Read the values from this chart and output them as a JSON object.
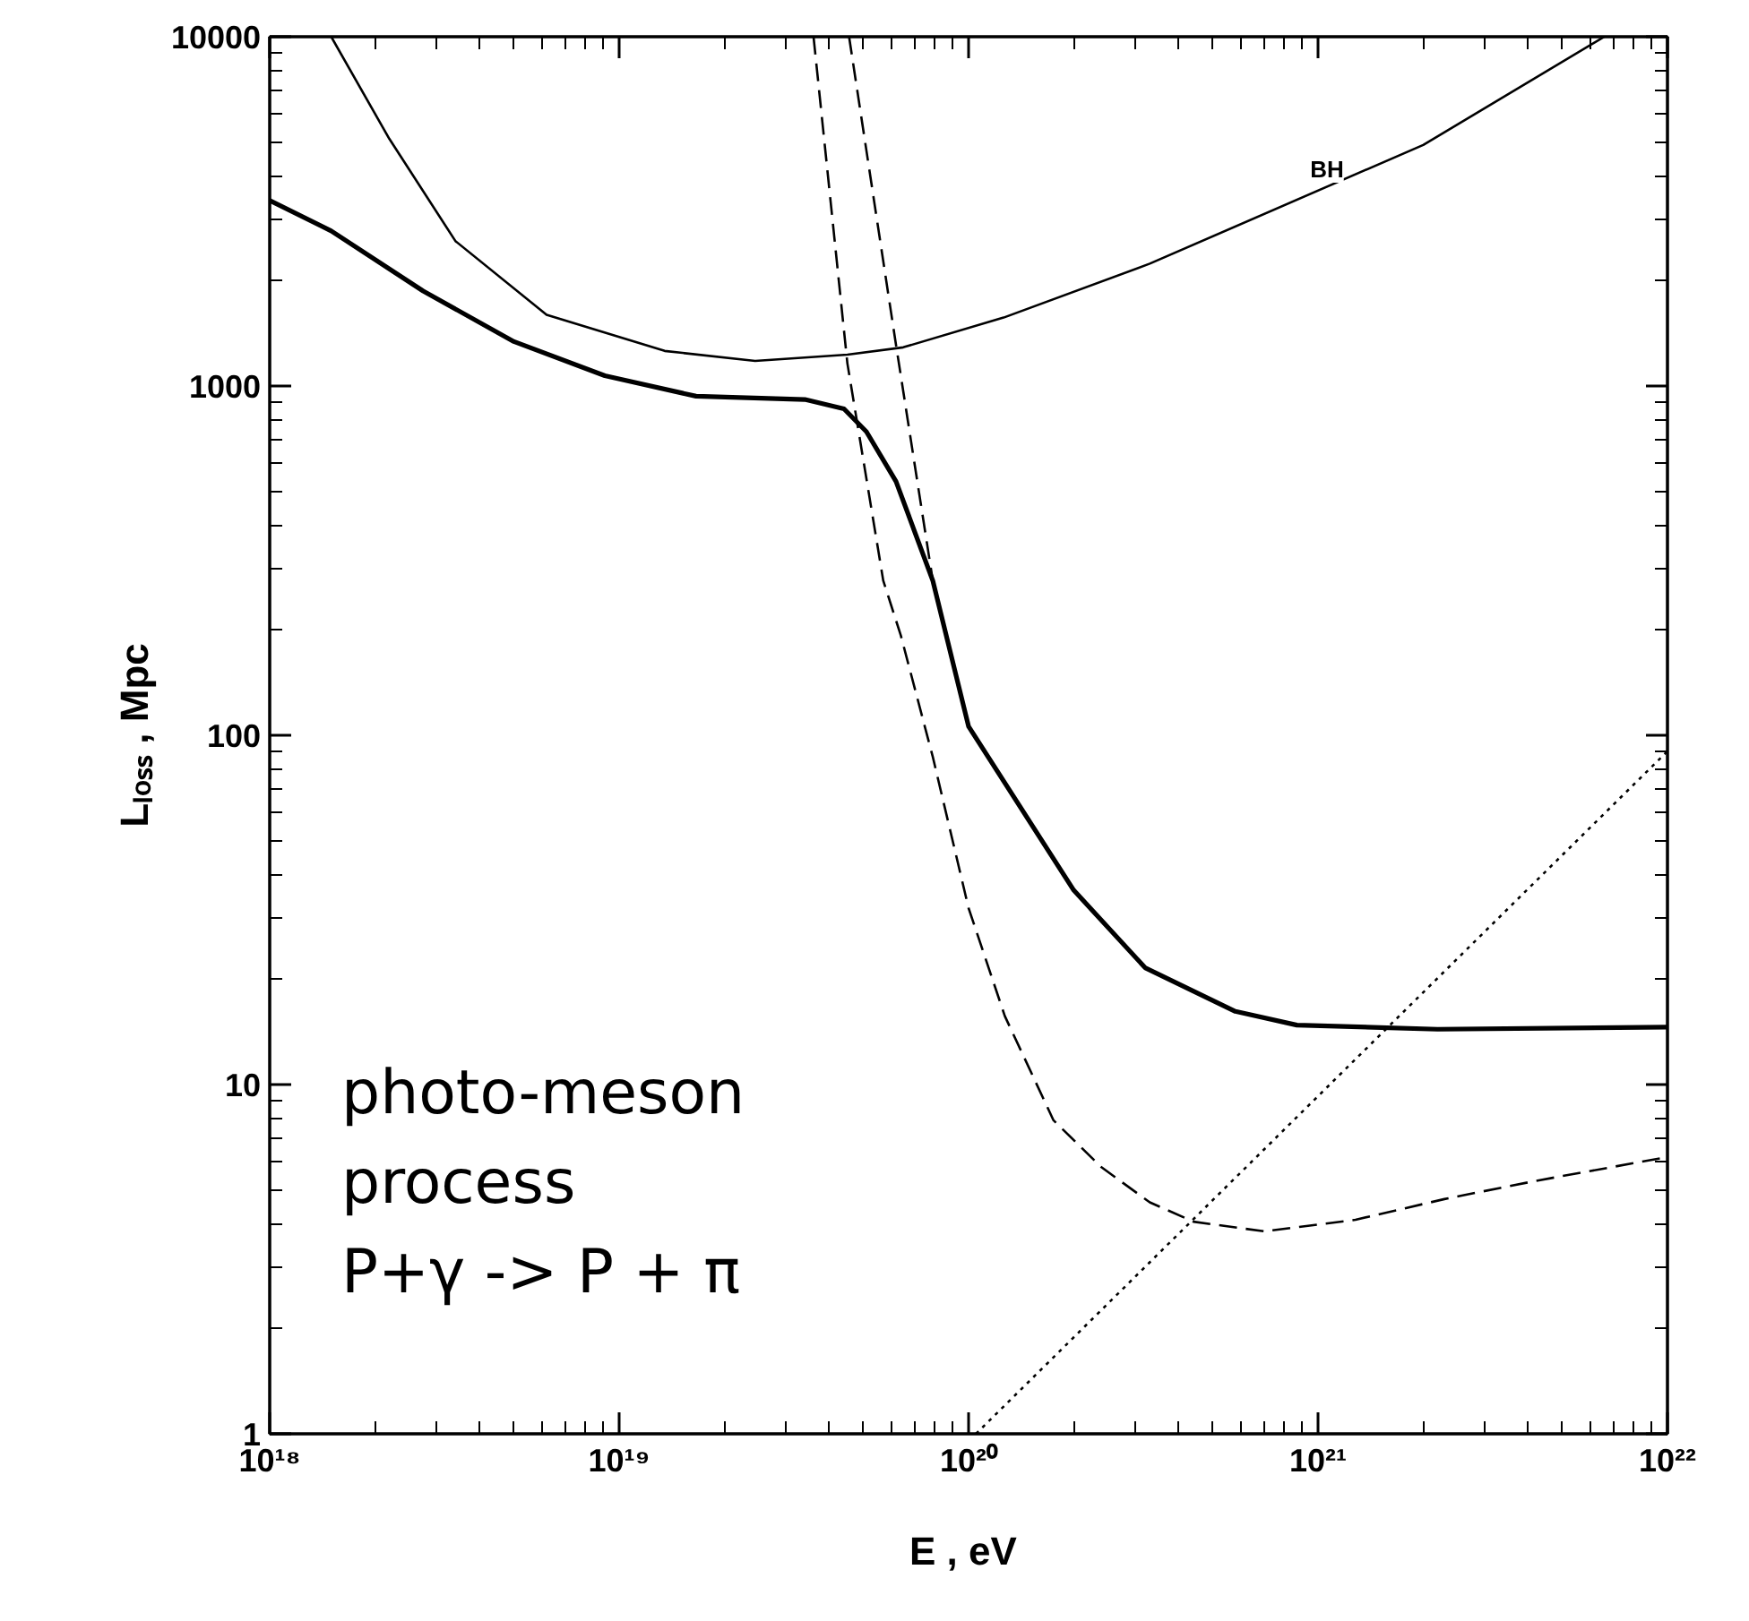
{
  "chart_data": {
    "type": "line",
    "xlabel": "E ,  eV",
    "ylabel": "Lₗₒₛₛ , Mpc",
    "log": "xy",
    "xlim": [
      1e+18,
      1e+22
    ],
    "ylim": [
      1,
      10000
    ],
    "xticks": [
      {
        "value": 1e+18,
        "label": "10¹⁸"
      },
      {
        "value": 1e+19,
        "label": "10¹⁹"
      },
      {
        "value": 1e+20,
        "label": "10²⁰"
      },
      {
        "value": 1e+21,
        "label": "10²¹"
      },
      {
        "value": 1e+22,
        "label": "10²²"
      }
    ],
    "yticks": [
      1,
      10,
      100,
      1000,
      10000
    ],
    "grid": false,
    "series": [
      {
        "color": "#000000",
        "line_style": "solid",
        "x": [
          1e+18,
          1.5e+18,
          2.75e+18,
          5e+18,
          9.1e+18,
          1.66e+19,
          3.4e+19,
          4.4e+19,
          5.1e+19,
          6.2e+19,
          7.9e+19,
          1e+20,
          2e+20,
          3.2e+20,
          5.8e+20,
          8.7e+20,
          2.2e+21,
          1e+22
        ],
        "values": [
          3400,
          2780,
          1870,
          1340,
          1070,
          935,
          915,
          860,
          740,
          533,
          277,
          106,
          36,
          21.6,
          16.2,
          14.8,
          14.4,
          14.6
        ]
      },
      {
        "color": "#000000",
        "line_style": "solid",
        "x": [
          1.5e+18,
          2.2e+18,
          3.4e+18,
          6.2e+18,
          1.35e+19,
          2.45e+19,
          4.5e+19,
          6.5e+19,
          1.26e+20,
          3.3e+20,
          2e+21,
          6.6e+21
        ],
        "values": [
          10000,
          5100,
          2600,
          1600,
          1260,
          1180,
          1230,
          1290,
          1570,
          2240,
          4900,
          10000
        ]
      },
      {
        "color": "#000000",
        "line_style": "dashed",
        "x": [
          4.55e+19,
          6.2e+19,
          7.9e+19,
          1e+20
        ],
        "values": [
          10000,
          1310,
          277,
          106
        ]
      },
      {
        "color": "#000000",
        "line_style": "dashed",
        "x": [
          3.6e+19,
          4.5e+19,
          5.7e+19,
          6.4e+19,
          7.9e+19,
          1e+20,
          1.27e+20,
          1.75e+20,
          2.4e+20,
          3.3e+20,
          4.4e+20,
          7e+20,
          1.28e+21,
          2.3e+21,
          4.2e+21,
          1e+22
        ],
        "values": [
          10000,
          1160,
          277,
          193,
          86.7,
          32,
          15.7,
          7.9,
          5.8,
          4.6,
          4.05,
          3.8,
          4.1,
          4.7,
          5.3,
          6.2
        ]
      },
      {
        "color": "#000000",
        "line_style": "dotted",
        "x": [
          1.05e+20,
          1e+22
        ],
        "values": [
          1,
          90
        ]
      }
    ],
    "annotations": [
      "BH",
      "photo-meson\nprocess\nP+γ  -> P + π"
    ]
  }
}
